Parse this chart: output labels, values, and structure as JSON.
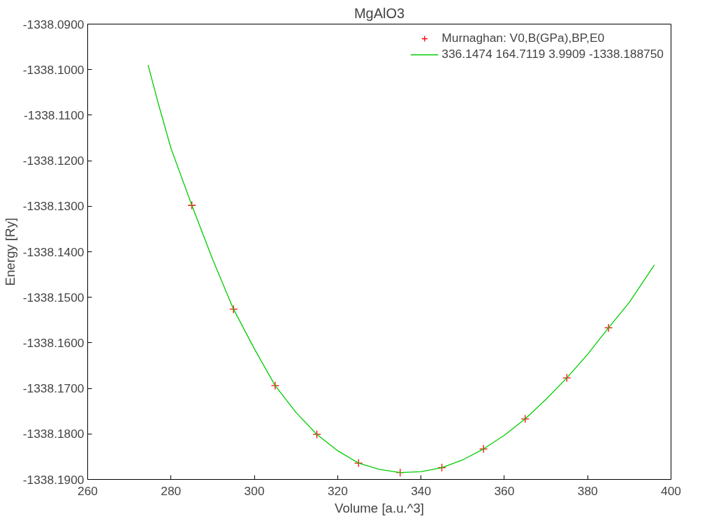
{
  "chart_data": {
    "type": "scatter",
    "title": "MgAlO3",
    "xlabel": "Volume [a.u.^3]",
    "ylabel": "Energy [Ry]",
    "xlim": [
      260,
      400
    ],
    "xticks": [
      260,
      280,
      300,
      320,
      340,
      360,
      380,
      400
    ],
    "ylim": [
      -1338.19,
      -1338.09
    ],
    "yticks": [
      {
        "value": -1338.19,
        "label": "-1338.1900"
      },
      {
        "value": -1338.18,
        "label": "-1338.1800"
      },
      {
        "value": -1338.17,
        "label": "-1338.1700"
      },
      {
        "value": -1338.16,
        "label": "-1338.1600"
      },
      {
        "value": -1338.15,
        "label": "-1338.1500"
      },
      {
        "value": -1338.14,
        "label": "-1338.1400"
      },
      {
        "value": -1338.13,
        "label": "-1338.1300"
      },
      {
        "value": -1338.12,
        "label": "-1338.1200"
      },
      {
        "value": -1338.11,
        "label": "-1338.1100"
      },
      {
        "value": -1338.1,
        "label": "-1338.1000"
      },
      {
        "value": -1338.09,
        "label": "-1338.0900"
      }
    ],
    "grid": false,
    "legend": "top right",
    "series": [
      {
        "name": "Murnaghan: V0,B(GPa),BP,E0",
        "marker": "cross",
        "color": "#ff0000",
        "x": [
          285,
          295,
          305,
          315,
          325,
          335,
          345,
          355,
          365,
          375,
          385
        ],
        "values": [
          -1338.1298,
          -1338.1526,
          -1338.1694,
          -1338.1801,
          -1338.1864,
          -1338.1885,
          -1338.1874,
          -1338.1833,
          -1338.1767,
          -1338.1677,
          -1338.1567
        ]
      },
      {
        "name": "336.1474 164.7119 3.9909 -1338.188750",
        "type": "line",
        "marker": "none",
        "color": "#00cc00",
        "line_style": "solid",
        "x": [
          274.5,
          277,
          280,
          285,
          290,
          295,
          300,
          305,
          310,
          315,
          320,
          325,
          330,
          335,
          340,
          345,
          350,
          355,
          360,
          365,
          370,
          375,
          380,
          385,
          390,
          396
        ],
        "values": [
          -1338.099,
          -1338.1076,
          -1338.1173,
          -1338.1298,
          -1338.1417,
          -1338.1526,
          -1338.1613,
          -1338.1694,
          -1338.1753,
          -1338.1801,
          -1338.1837,
          -1338.1864,
          -1338.1878,
          -1338.1885,
          -1338.1883,
          -1338.1874,
          -1338.1857,
          -1338.1833,
          -1338.1803,
          -1338.1767,
          -1338.1724,
          -1338.1677,
          -1338.1625,
          -1338.1567,
          -1338.1511,
          -1338.1429
        ]
      }
    ]
  }
}
